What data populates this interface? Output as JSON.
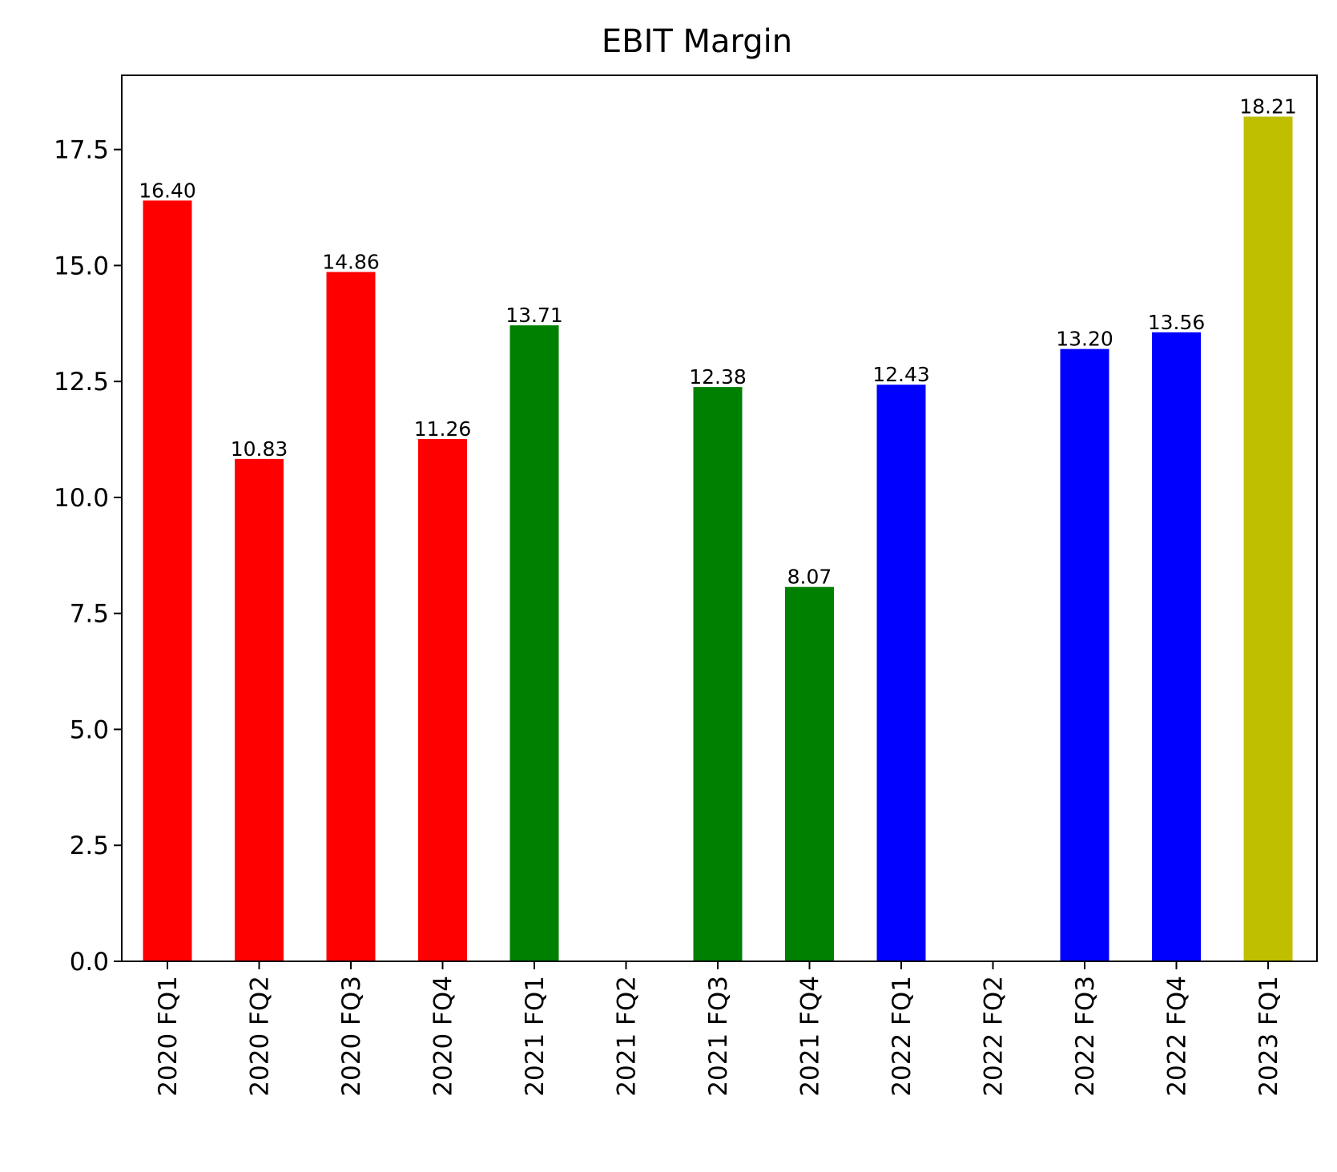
{
  "chart_data": {
    "type": "bar",
    "title": "EBIT Margin",
    "xlabel": "",
    "ylabel": "",
    "ylim": [
      0,
      19.1
    ],
    "grid": false,
    "legend": "none",
    "yticks": [
      "0.0",
      "2.5",
      "5.0",
      "7.5",
      "10.0",
      "12.5",
      "15.0",
      "17.5"
    ],
    "categories": [
      "2020 FQ1",
      "2020 FQ2",
      "2020 FQ3",
      "2020 FQ4",
      "2021 FQ1",
      "2021 FQ2",
      "2021 FQ3",
      "2021 FQ4",
      "2022 FQ1",
      "2022 FQ2",
      "2022 FQ3",
      "2022 FQ4",
      "2023 FQ1"
    ],
    "values": [
      16.4,
      10.83,
      14.86,
      11.26,
      13.71,
      0.0,
      12.38,
      8.07,
      12.43,
      0.0,
      13.2,
      13.56,
      18.21
    ],
    "data_labels": [
      "16.40",
      "10.83",
      "14.86",
      "11.26",
      "13.71",
      "",
      "12.38",
      "8.07",
      "12.43",
      "",
      "13.20",
      "13.56",
      "18.21"
    ],
    "colors": [
      "#ff0000",
      "#ff0000",
      "#ff0000",
      "#ff0000",
      "#008000",
      "#008000",
      "#008000",
      "#008000",
      "#0000ff",
      "#0000ff",
      "#0000ff",
      "#0000ff",
      "#bfbf00"
    ]
  }
}
